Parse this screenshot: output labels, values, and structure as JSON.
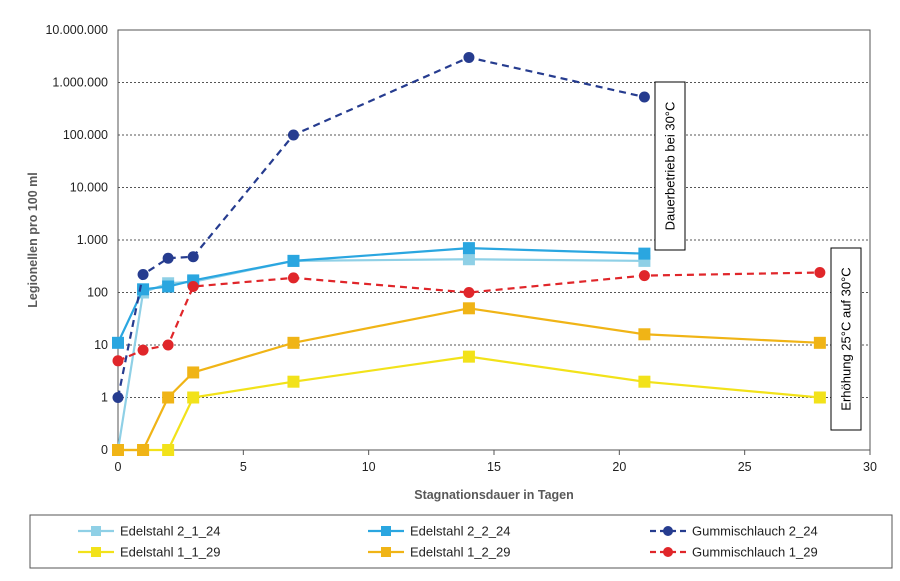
{
  "chart_data": {
    "type": "line",
    "title": "",
    "xlabel": "Stagnationsdauer in Tagen",
    "ylabel": "Legionellen pro 100 ml",
    "xlim": [
      0,
      30
    ],
    "x_ticks": [
      0,
      5,
      10,
      15,
      20,
      25,
      30
    ],
    "x_tick_labels": [
      "0",
      "5",
      "10",
      "15",
      "20",
      "25",
      "30"
    ],
    "y_scale": "log (with 0 plotted below 1)",
    "y_ticks": [
      0,
      1,
      10,
      100,
      1000,
      10000,
      100000,
      1000000,
      10000000
    ],
    "y_tick_labels": [
      "0",
      "1",
      "10",
      "100",
      "1.000",
      "10.000",
      "100.000",
      "1.000.000",
      "10.000.000"
    ],
    "grid": "horizontal dashed",
    "legend_position": "bottom",
    "series": [
      {
        "name": "Edelstahl 2_1_24",
        "color": "#8fd0e6",
        "line_style": "solid",
        "marker": "square",
        "x": [
          0,
          1,
          2,
          3,
          7,
          14,
          21
        ],
        "y": [
          0,
          100,
          150,
          160,
          400,
          430,
          400
        ]
      },
      {
        "name": "Edelstahl 2_2_24",
        "color": "#2aa6e0",
        "line_style": "solid",
        "marker": "square",
        "x": [
          0,
          1,
          2,
          3,
          7,
          14,
          21
        ],
        "y": [
          11,
          115,
          130,
          170,
          400,
          700,
          550
        ]
      },
      {
        "name": "Gummischlauch 2_24",
        "color": "#263c8f",
        "line_style": "dashed",
        "marker": "circle",
        "x": [
          0,
          1,
          2,
          3,
          7,
          14,
          21
        ],
        "y": [
          1,
          220,
          450,
          480,
          100000,
          3000000,
          530000
        ]
      },
      {
        "name": "Edelstahl 1_1_29",
        "color": "#f2e21a",
        "line_style": "solid",
        "marker": "square",
        "x": [
          0,
          1,
          2,
          3,
          7,
          14,
          21,
          28
        ],
        "y": [
          0,
          0,
          0,
          1,
          2,
          6,
          2,
          1
        ]
      },
      {
        "name": "Edelstahl 1_2_29",
        "color": "#f0b416",
        "line_style": "solid",
        "marker": "square",
        "x": [
          0,
          1,
          2,
          3,
          7,
          14,
          21,
          28
        ],
        "y": [
          0,
          0,
          1,
          3,
          11,
          50,
          16,
          11
        ]
      },
      {
        "name": "Gummischlauch 1_29",
        "color": "#e0262a",
        "line_style": "dashed",
        "marker": "circle",
        "x": [
          0,
          1,
          2,
          3,
          7,
          14,
          21,
          28
        ],
        "y": [
          5,
          8,
          10,
          130,
          190,
          100,
          210,
          240
        ]
      }
    ],
    "annotations": [
      {
        "text": "Dauerbetrieb bei 30°C",
        "x": 21,
        "orientation": "vertical"
      },
      {
        "text": "Erhöhung 25°C auf 30°C",
        "x": 28,
        "orientation": "vertical"
      }
    ]
  }
}
